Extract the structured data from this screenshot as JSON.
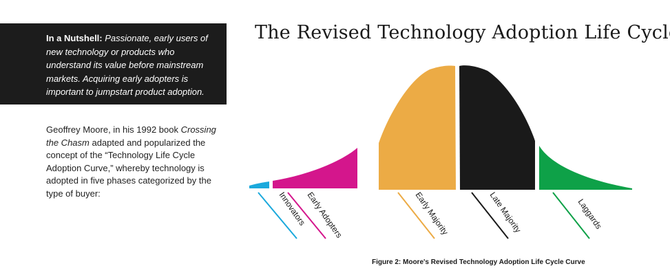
{
  "title": "The Revised Technology Adoption Life Cycle",
  "nutshell": {
    "lead": "In a Nutshell:",
    "text": "Passionate, early users of new technology or products who understand its value before mainstream markets. Acquiring early adopters is important to jumpstart product adoption."
  },
  "intro": {
    "part1": "Geoffrey Moore, in his 1992 book ",
    "book": "Crossing the Chasm",
    "part2": " adapted and popularized the concept of the “Technology Life Cycle Adoption Curve,” whereby technology is adopted in five phases categorized by the type of buyer:"
  },
  "segments": [
    {
      "label": "Innovators",
      "color": "#1ba9dc"
    },
    {
      "label": "Early Adopters",
      "color": "#d4168c"
    },
    {
      "label": "Early Majority",
      "color": "#ecab45"
    },
    {
      "label": "Late Majority",
      "color": "#1a1a1a"
    },
    {
      "label": "Laggards",
      "color": "#0ea148"
    }
  ],
  "caption": "Figure 2: Moore's Revised Technology Adoption Life Cycle Curve"
}
